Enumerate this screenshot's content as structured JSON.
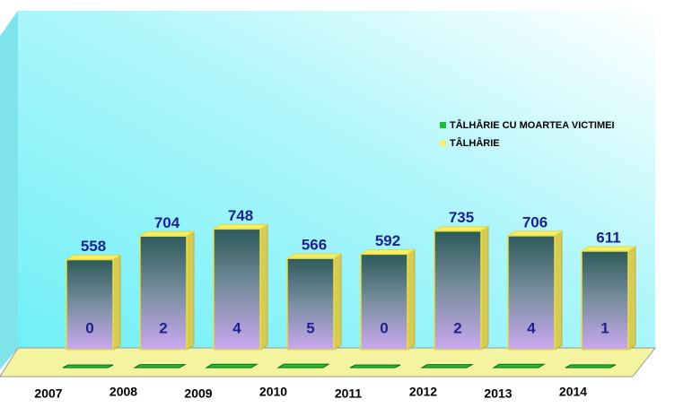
{
  "chart_data": {
    "type": "bar3d",
    "categories": [
      "2007",
      "2008",
      "2009",
      "2010",
      "2011",
      "2012",
      "2013",
      "2014"
    ],
    "series": [
      {
        "name": "TÂLHÂRIE CU MOARTEA VICTIMEI",
        "color": "#1fbf2f",
        "values": [
          0,
          2,
          4,
          5,
          0,
          2,
          4,
          1
        ]
      },
      {
        "name": "TÂLHÂRIE",
        "color": "#c9a8f0",
        "values": [
          558,
          704,
          748,
          566,
          592,
          735,
          706,
          611
        ]
      }
    ]
  }
}
